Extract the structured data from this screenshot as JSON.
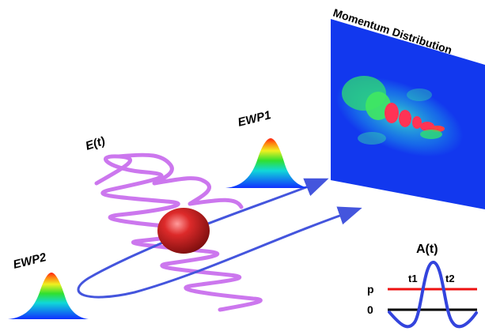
{
  "labels": {
    "momentum_distribution": "Momentum Distribution",
    "field": "E(t)",
    "ewp1": "EWP1",
    "ewp2": "EWP2",
    "vector_potential": "A(t)",
    "t1": "t1",
    "t2": "t2",
    "p": "p",
    "zero": "0"
  },
  "colors": {
    "laser_field": "#cc77ee",
    "trajectory": "#4455dd",
    "atom": "#cc2222",
    "detector": "#1133ee",
    "vector_potential": "#3344dd",
    "p_line": "#ee1111",
    "zero_line": "#000000"
  }
}
